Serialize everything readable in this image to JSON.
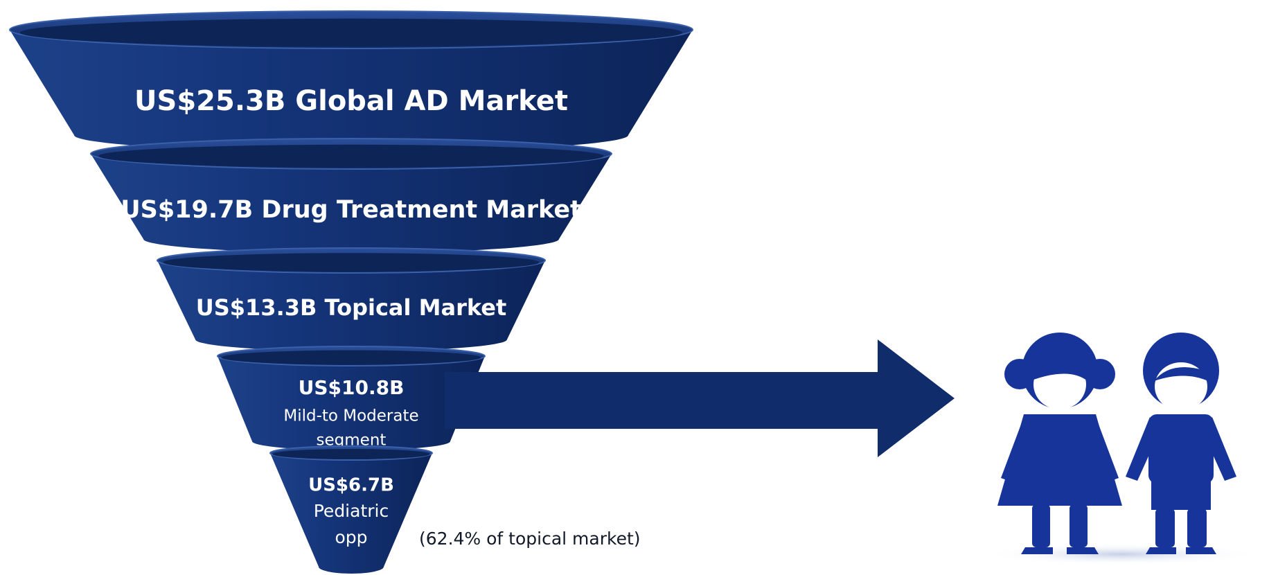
{
  "funnel": {
    "levels": [
      {
        "lines": [
          "US$25.3B Global AD Market"
        ]
      },
      {
        "lines": [
          "US$19.7B Drug Treatment Market"
        ]
      },
      {
        "lines": [
          "US$13.3B Topical Market"
        ]
      },
      {
        "lines": [
          "US$10.8B",
          "Mild-to Moderate",
          "segment"
        ]
      },
      {
        "lines": [
          "US$6.7B",
          "Pediatric",
          "opp"
        ]
      }
    ]
  },
  "note": "(62.4% of topical market)"
}
